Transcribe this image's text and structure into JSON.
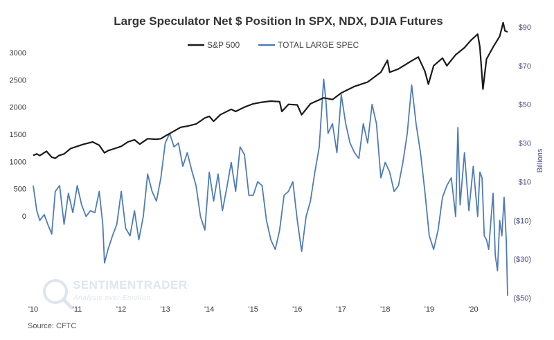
{
  "chart_data": {
    "type": "line",
    "title": "Large Speculator Net $ Position In SPX, NDX, DJIA Futures",
    "source": "Source: CFTC",
    "watermark": {
      "brand": "SENTIMENTRADER",
      "tagline": "Analysis over Emotion"
    },
    "x_ticks": [
      "'10",
      "'11",
      "'12",
      "'13",
      "'14",
      "'15",
      "'16",
      "'17",
      "'18",
      "'19",
      "'20"
    ],
    "x_range": [
      2010.0,
      2020.78
    ],
    "left_axis": {
      "ticks": [
        "0",
        "500",
        "1000",
        "1500",
        "2000",
        "2500",
        "3000"
      ],
      "tick_values": [
        0,
        500,
        1000,
        1500,
        2000,
        2500,
        3000
      ],
      "range": [
        -1500,
        3500
      ]
    },
    "right_axis": {
      "label": "Billions",
      "ticks": [
        "($50)",
        "($30)",
        "($10)",
        "$10",
        "$30",
        "$50",
        "$70",
        "$90"
      ],
      "tick_values": [
        -50,
        -30,
        -10,
        10,
        30,
        50,
        70,
        90
      ],
      "range": [
        -50,
        90
      ]
    },
    "colors": {
      "sp500": "#1a1a1a",
      "spec": "#4f7bb7",
      "title": "#333333",
      "right_axis": "#4a4f86"
    },
    "series": [
      {
        "name": "S&P 500",
        "axis": "left",
        "x": [
          2010.0,
          2010.08,
          2010.15,
          2010.3,
          2010.42,
          2010.5,
          2010.58,
          2010.7,
          2010.85,
          2011.0,
          2011.15,
          2011.35,
          2011.5,
          2011.62,
          2011.7,
          2011.85,
          2012.0,
          2012.15,
          2012.3,
          2012.42,
          2012.6,
          2012.8,
          2012.9,
          2013.0,
          2013.2,
          2013.35,
          2013.5,
          2013.7,
          2013.9,
          2014.0,
          2014.1,
          2014.25,
          2014.5,
          2014.6,
          2014.8,
          2015.0,
          2015.2,
          2015.4,
          2015.6,
          2015.65,
          2015.8,
          2016.0,
          2016.1,
          2016.3,
          2016.6,
          2016.8,
          2017.0,
          2017.3,
          2017.6,
          2017.9,
          2018.05,
          2018.1,
          2018.3,
          2018.6,
          2018.75,
          2018.9,
          2018.98,
          2019.1,
          2019.3,
          2019.4,
          2019.6,
          2019.8,
          2019.95,
          2020.1,
          2020.15,
          2020.22,
          2020.3,
          2020.45,
          2020.6,
          2020.68,
          2020.72,
          2020.78
        ],
        "values": [
          1115,
          1140,
          1110,
          1190,
          1080,
          1060,
          1110,
          1140,
          1240,
          1280,
          1320,
          1360,
          1300,
          1160,
          1200,
          1240,
          1280,
          1360,
          1400,
          1320,
          1420,
          1410,
          1420,
          1470,
          1560,
          1630,
          1650,
          1690,
          1800,
          1830,
          1740,
          1860,
          1960,
          1920,
          2000,
          2060,
          2090,
          2110,
          2100,
          1920,
          2050,
          2040,
          1860,
          2060,
          2170,
          2140,
          2260,
          2380,
          2460,
          2640,
          2860,
          2640,
          2700,
          2850,
          2920,
          2660,
          2420,
          2760,
          2900,
          2760,
          2960,
          3090,
          3230,
          3340,
          3100,
          2330,
          2880,
          3100,
          3300,
          3550,
          3400,
          3380
        ]
      },
      {
        "name": "TOTAL LARGE SPEC",
        "axis": "right",
        "x": [
          2010.0,
          2010.08,
          2010.15,
          2010.25,
          2010.33,
          2010.42,
          2010.5,
          2010.6,
          2010.7,
          2010.8,
          2010.9,
          2011.0,
          2011.1,
          2011.2,
          2011.3,
          2011.4,
          2011.5,
          2011.58,
          2011.62,
          2011.7,
          2011.8,
          2011.9,
          2012.0,
          2012.1,
          2012.2,
          2012.3,
          2012.4,
          2012.5,
          2012.6,
          2012.7,
          2012.8,
          2012.9,
          2013.0,
          2013.1,
          2013.2,
          2013.3,
          2013.4,
          2013.5,
          2013.6,
          2013.7,
          2013.8,
          2013.9,
          2014.0,
          2014.1,
          2014.2,
          2014.3,
          2014.4,
          2014.5,
          2014.6,
          2014.7,
          2014.8,
          2014.9,
          2015.0,
          2015.1,
          2015.2,
          2015.3,
          2015.4,
          2015.5,
          2015.6,
          2015.7,
          2015.8,
          2015.9,
          2016.0,
          2016.1,
          2016.2,
          2016.3,
          2016.4,
          2016.5,
          2016.6,
          2016.65,
          2016.7,
          2016.8,
          2016.9,
          2017.0,
          2017.1,
          2017.2,
          2017.3,
          2017.4,
          2017.5,
          2017.6,
          2017.7,
          2017.8,
          2017.9,
          2018.0,
          2018.1,
          2018.2,
          2018.3,
          2018.4,
          2018.5,
          2018.6,
          2018.7,
          2018.8,
          2018.9,
          2019.0,
          2019.1,
          2019.2,
          2019.3,
          2019.4,
          2019.5,
          2019.6,
          2019.65,
          2019.7,
          2019.8,
          2019.9,
          2020.0,
          2020.05,
          2020.1,
          2020.15,
          2020.2,
          2020.25,
          2020.3,
          2020.35,
          2020.4,
          2020.45,
          2020.5,
          2020.55,
          2020.6,
          2020.65,
          2020.7,
          2020.75,
          2020.78
        ],
        "values": [
          8,
          -5,
          -10,
          -7,
          -12,
          -17,
          5,
          8,
          -12,
          4,
          -6,
          8,
          -2,
          -8,
          -5,
          -6,
          5,
          -12,
          -32,
          -25,
          -18,
          -12,
          5,
          -14,
          -18,
          -5,
          -20,
          -8,
          14,
          5,
          0,
          12,
          30,
          35,
          28,
          30,
          18,
          25,
          16,
          8,
          -8,
          -15,
          15,
          0,
          14,
          -5,
          7,
          20,
          5,
          28,
          24,
          3,
          3,
          10,
          8,
          -10,
          -20,
          -25,
          -15,
          3,
          5,
          10,
          -10,
          -26,
          -8,
          0,
          15,
          28,
          63,
          52,
          35,
          40,
          25,
          55,
          40,
          30,
          25,
          22,
          40,
          30,
          50,
          40,
          12,
          20,
          15,
          5,
          8,
          20,
          35,
          60,
          40,
          25,
          5,
          -18,
          -25,
          -15,
          2,
          8,
          12,
          -8,
          38,
          -2,
          25,
          -5,
          18,
          5,
          -8,
          15,
          12,
          -18,
          -20,
          -25,
          -10,
          4,
          -28,
          -36,
          -10,
          -18,
          2,
          -20,
          -49
        ]
      }
    ]
  }
}
